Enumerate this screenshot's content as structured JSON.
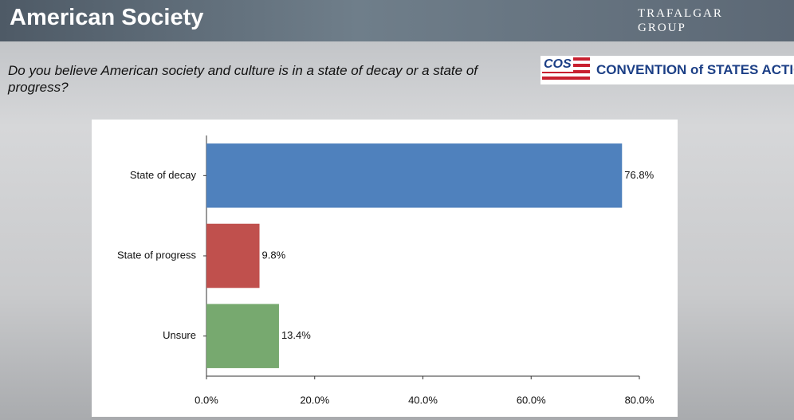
{
  "chart_data": {
    "type": "bar",
    "orientation": "horizontal",
    "title": "American Society",
    "subtitle": "Do you believe American society and culture is in a state of decay or a state of progress?",
    "categories": [
      "State of decay",
      "State of progress",
      "Unsure"
    ],
    "values": [
      76.8,
      9.8,
      13.4
    ],
    "value_labels": [
      "76.8%",
      "9.8%",
      "13.4%"
    ],
    "colors": [
      "#4f81bd",
      "#c0504d",
      "#77a96f"
    ],
    "xlim": [
      0,
      80
    ],
    "xticks": [
      {
        "value": 0,
        "label": "0.0%"
      },
      {
        "value": 20,
        "label": "20.0%"
      },
      {
        "value": 40,
        "label": "40.0%"
      },
      {
        "value": 60,
        "label": "60.0%"
      },
      {
        "value": 80,
        "label": "80.0%"
      }
    ],
    "grid": false
  },
  "logos": {
    "trafalgar": "TRAFALGAR GROUP",
    "cos": "COS",
    "convention": "CONVENTION of STATES ACTION"
  }
}
